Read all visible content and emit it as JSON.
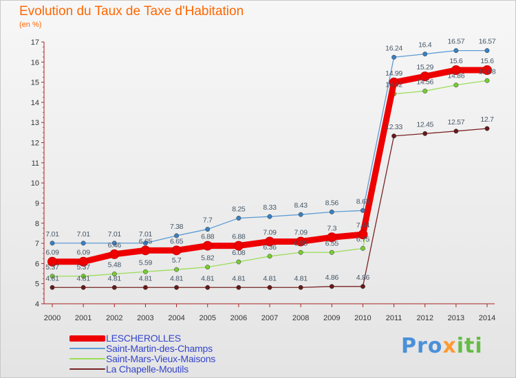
{
  "title": "Evolution du Taux de Taxe d'Habitation",
  "subtitle": "(en %)",
  "logo": {
    "part1": "Pro",
    "part2": "x",
    "part3": "iti"
  },
  "chart_data": {
    "type": "line",
    "x": [
      2000,
      2001,
      2002,
      2003,
      2004,
      2005,
      2006,
      2007,
      2008,
      2009,
      2010,
      2011,
      2012,
      2013,
      2014
    ],
    "ylim": [
      4,
      17
    ],
    "yticks": [
      4,
      5,
      6,
      7,
      8,
      9,
      10,
      11,
      12,
      13,
      14,
      15,
      16,
      17
    ],
    "grid": false,
    "legend_position": "bottom-left",
    "series": [
      {
        "name": "LESCHEROLLES",
        "color": "#ee0000",
        "marker": "#ee0000",
        "values": [
          6.09,
          6.09,
          6.46,
          6.65,
          6.65,
          6.88,
          6.88,
          7.09,
          7.09,
          7.3,
          7.44,
          14.99,
          15.29,
          15.6,
          15.6
        ],
        "labels": [
          "6.09",
          "6.09",
          "6.46",
          "6.65",
          "6.65",
          "6.88",
          "6.88",
          "7.09",
          "7.09",
          "7.3",
          "7.44",
          "14.99",
          "15.29",
          "15.6",
          "15.6"
        ]
      },
      {
        "name": "Saint-Martin-des-Champs",
        "color": "#5b9bd5",
        "marker": "#3a7fc0",
        "values": [
          7.01,
          7.01,
          7.01,
          7.01,
          7.38,
          7.7,
          8.25,
          8.33,
          8.43,
          8.56,
          8.63,
          16.24,
          16.4,
          16.57,
          16.57
        ],
        "labels": [
          "7.01",
          "7.01",
          "7.01",
          "7.01",
          "7.38",
          "7.7",
          "8.25",
          "8.33",
          "8.43",
          "8.56",
          "8.63",
          "16.24",
          "16.4",
          "16.57",
          "16.57"
        ]
      },
      {
        "name": "Saint-Mars-Vieux-Maisons",
        "color": "#99dd55",
        "marker": "#77cc33",
        "values": [
          5.37,
          5.37,
          5.48,
          5.59,
          5.7,
          5.82,
          6.08,
          6.36,
          6.55,
          6.55,
          6.75,
          14.42,
          14.56,
          14.86,
          15.08
        ],
        "labels": [
          "5.37",
          "5.37",
          "5.48",
          "5.59",
          "5.7",
          "5.82",
          "6.08",
          "6.36",
          "6.55",
          "6.55",
          "6.75",
          "14.42",
          "14.56",
          "14.86",
          "15.08"
        ]
      },
      {
        "name": "La Chapelle-Moutils",
        "color": "#772222",
        "marker": "#661a1a",
        "values": [
          4.81,
          4.81,
          4.81,
          4.81,
          4.81,
          4.81,
          4.81,
          4.81,
          4.81,
          4.86,
          4.86,
          12.33,
          12.45,
          12.57,
          12.7
        ],
        "labels": [
          "4.81",
          "4.81",
          "4.81",
          "4.81",
          "4.81",
          "4.81",
          "4.81",
          "4.81",
          "4.81",
          "4.86",
          "4.86",
          "12.33",
          "12.45",
          "12.57",
          "12.7"
        ]
      }
    ]
  }
}
